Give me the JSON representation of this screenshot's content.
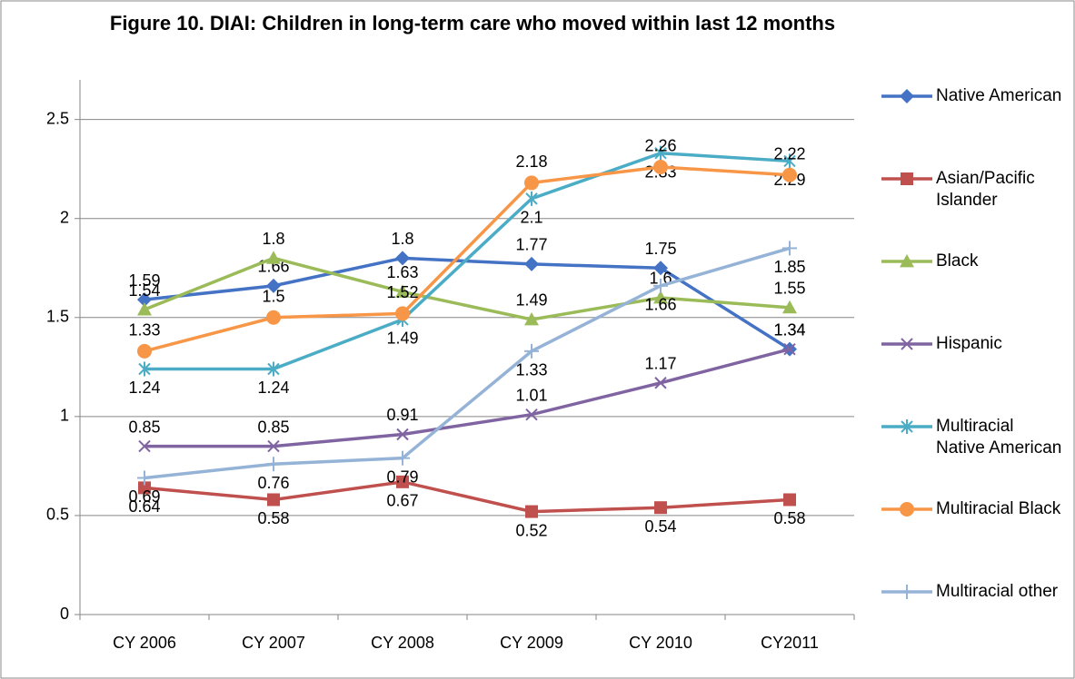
{
  "chart_data": {
    "type": "line",
    "title": "Figure 10. DIAI: Children in long-term care who moved within last 12 months",
    "categories": [
      "CY 2006",
      "CY 2007",
      "CY 2008",
      "CY 2009",
      "CY 2010",
      "CY2011"
    ],
    "ylim": [
      0,
      2.7
    ],
    "yticks": [
      0,
      0.5,
      1,
      1.5,
      2,
      2.5
    ],
    "grid": true,
    "legend": "right",
    "series": [
      {
        "name": "Native American",
        "color": "#4472c4",
        "marker": "diamond",
        "values": [
          1.59,
          1.66,
          1.8,
          1.77,
          1.75,
          1.34
        ]
      },
      {
        "name": "Asian/Pacific Islander",
        "color": "#c0504d",
        "marker": "square",
        "values": [
          0.64,
          0.58,
          0.67,
          0.52,
          0.54,
          0.58
        ]
      },
      {
        "name": "Black",
        "color": "#9bbb59",
        "marker": "triangle",
        "values": [
          1.54,
          1.8,
          1.63,
          1.49,
          1.6,
          1.55
        ]
      },
      {
        "name": "Hispanic",
        "color": "#8064a2",
        "marker": "x",
        "values": [
          0.85,
          0.85,
          0.91,
          1.01,
          1.17,
          1.34
        ]
      },
      {
        "name": "Multiracial Native American",
        "color": "#4bacc6",
        "marker": "star",
        "values": [
          1.24,
          1.24,
          1.49,
          2.1,
          2.33,
          2.29
        ]
      },
      {
        "name": "Multiracial Black",
        "color": "#f79646",
        "marker": "circle",
        "values": [
          1.33,
          1.5,
          1.52,
          2.18,
          2.26,
          2.22
        ]
      },
      {
        "name": "Multiracial other",
        "color": "#95b3d7",
        "marker": "plus",
        "values": [
          0.69,
          0.76,
          0.79,
          1.33,
          1.66,
          1.85
        ]
      }
    ]
  }
}
